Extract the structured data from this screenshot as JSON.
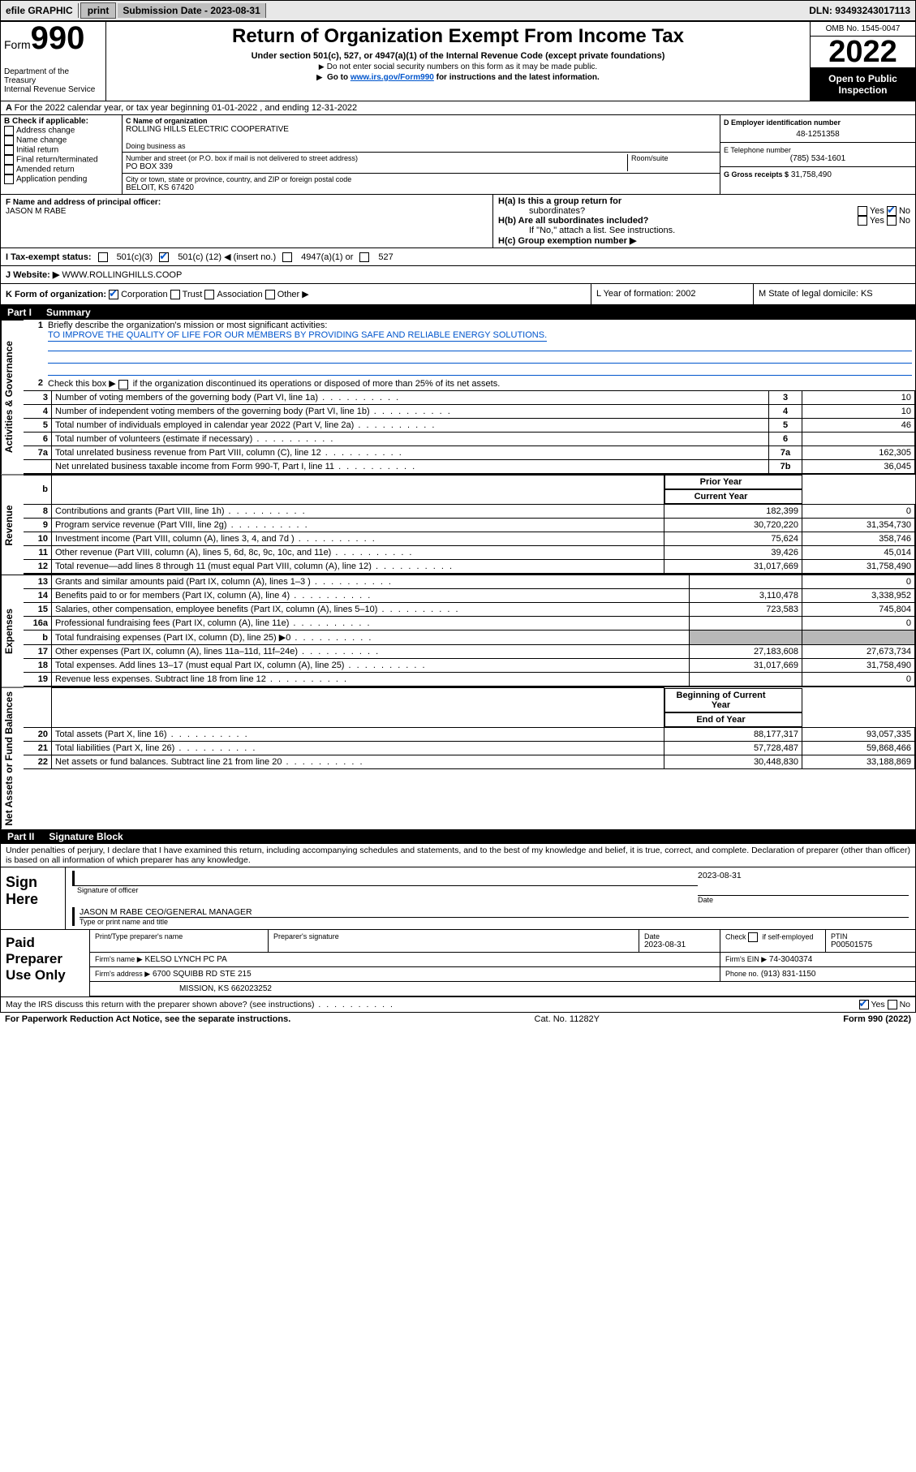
{
  "topbar": {
    "efile": "efile GRAPHIC",
    "print": "print",
    "submission_label": "Submission Date - 2023-08-31",
    "dln": "DLN: 93493243017113"
  },
  "header": {
    "form_word": "Form",
    "form_no": "990",
    "dept": "Department of the Treasury",
    "irs": "Internal Revenue Service",
    "title": "Return of Organization Exempt From Income Tax",
    "sub1": "Under section 501(c), 527, or 4947(a)(1) of the Internal Revenue Code (except private foundations)",
    "sub2": "Do not enter social security numbers on this form as it may be made public.",
    "sub3a": "Go to ",
    "sub3_link": "www.irs.gov/Form990",
    "sub3b": " for instructions and the latest information.",
    "omb": "OMB No. 1545-0047",
    "year": "2022",
    "open1": "Open to Public",
    "open2": "Inspection"
  },
  "rowA": "For the 2022 calendar year, or tax year beginning 01-01-2022   , and ending 12-31-2022",
  "boxB": {
    "label": "B Check if applicable:",
    "items": [
      "Address change",
      "Name change",
      "Initial return",
      "Final return/terminated",
      "Amended return",
      "Application pending"
    ]
  },
  "boxC": {
    "name_label": "C Name of organization",
    "name": "ROLLING HILLS ELECTRIC COOPERATIVE",
    "dba_label": "Doing business as",
    "street_label": "Number and street (or P.O. box if mail is not delivered to street address)",
    "room_label": "Room/suite",
    "street": "PO BOX 339",
    "city_label": "City or town, state or province, country, and ZIP or foreign postal code",
    "city": "BELOIT, KS  67420"
  },
  "boxD": {
    "ein_label": "D Employer identification number",
    "ein": "48-1251358",
    "phone_label": "E Telephone number",
    "phone": "(785) 534-1601",
    "gross_label": "G Gross receipts $",
    "gross": "31,758,490"
  },
  "boxF": {
    "label": "F  Name and address of principal officer:",
    "value": "JASON M RABE"
  },
  "boxH": {
    "ha": "H(a)  Is this a group return for",
    "ha2": "subordinates?",
    "hb": "H(b)  Are all subordinates included?",
    "hb_note": "If \"No,\" attach a list. See instructions.",
    "hc": "H(c)  Group exemption number ▶",
    "yes": "Yes",
    "no": "No"
  },
  "rowI": {
    "label": "I    Tax-exempt status:",
    "o1": "501(c)(3)",
    "o2a": "501(c) (",
    "o2b": "12",
    "o2c": ") ◀ (insert no.)",
    "o3": "4947(a)(1) or",
    "o4": "527"
  },
  "rowJ": {
    "label": "J    Website: ▶",
    "value": "WWW.ROLLINGHILLS.COOP"
  },
  "rowK": {
    "label": "K Form of organization:",
    "corp": "Corporation",
    "trust": "Trust",
    "assoc": "Association",
    "other": "Other ▶",
    "L": "L Year of formation: 2002",
    "M": "M State of legal domicile: KS"
  },
  "part1": {
    "hdr_pn": "Part I",
    "hdr_title": "Summary"
  },
  "gov": {
    "l1_label": "Briefly describe the organization's mission or most significant activities:",
    "l1_text": "TO IMPROVE THE QUALITY OF LIFE FOR OUR MEMBERS BY PROVIDING SAFE AND RELIABLE ENERGY SOLUTIONS.",
    "l2": "Check this box ▶     if the organization discontinued its operations or disposed of more than 25% of its net assets.",
    "rows": [
      {
        "n": "3",
        "d": "Number of voting members of the governing body (Part VI, line 1a)",
        "k": "3",
        "v": "10"
      },
      {
        "n": "4",
        "d": "Number of independent voting members of the governing body (Part VI, line 1b)",
        "k": "4",
        "v": "10"
      },
      {
        "n": "5",
        "d": "Total number of individuals employed in calendar year 2022 (Part V, line 2a)",
        "k": "5",
        "v": "46"
      },
      {
        "n": "6",
        "d": "Total number of volunteers (estimate if necessary)",
        "k": "6",
        "v": ""
      },
      {
        "n": "7a",
        "d": "Total unrelated business revenue from Part VIII, column (C), line 12",
        "k": "7a",
        "v": "162,305"
      },
      {
        "n": "",
        "d": "Net unrelated business taxable income from Form 990-T, Part I, line 11",
        "k": "7b",
        "v": "36,045"
      }
    ]
  },
  "col_hdr": {
    "b": "b",
    "prior": "Prior Year",
    "current": "Current Year"
  },
  "rev": [
    {
      "n": "8",
      "d": "Contributions and grants (Part VIII, line 1h)",
      "p": "182,399",
      "c": "0"
    },
    {
      "n": "9",
      "d": "Program service revenue (Part VIII, line 2g)",
      "p": "30,720,220",
      "c": "31,354,730"
    },
    {
      "n": "10",
      "d": "Investment income (Part VIII, column (A), lines 3, 4, and 7d )",
      "p": "75,624",
      "c": "358,746"
    },
    {
      "n": "11",
      "d": "Other revenue (Part VIII, column (A), lines 5, 6d, 8c, 9c, 10c, and 11e)",
      "p": "39,426",
      "c": "45,014"
    },
    {
      "n": "12",
      "d": "Total revenue—add lines 8 through 11 (must equal Part VIII, column (A), line 12)",
      "p": "31,017,669",
      "c": "31,758,490"
    }
  ],
  "exp": [
    {
      "n": "13",
      "d": "Grants and similar amounts paid (Part IX, column (A), lines 1–3 )",
      "p": "",
      "c": "0"
    },
    {
      "n": "14",
      "d": "Benefits paid to or for members (Part IX, column (A), line 4)",
      "p": "3,110,478",
      "c": "3,338,952"
    },
    {
      "n": "15",
      "d": "Salaries, other compensation, employee benefits (Part IX, column (A), lines 5–10)",
      "p": "723,583",
      "c": "745,804"
    },
    {
      "n": "16a",
      "d": "Professional fundraising fees (Part IX, column (A), line 11e)",
      "p": "",
      "c": "0"
    },
    {
      "n": "b",
      "d": "Total fundraising expenses (Part IX, column (D), line 25) ▶0",
      "p": "GRAY",
      "c": "GRAY"
    },
    {
      "n": "17",
      "d": "Other expenses (Part IX, column (A), lines 11a–11d, 11f–24e)",
      "p": "27,183,608",
      "c": "27,673,734"
    },
    {
      "n": "18",
      "d": "Total expenses. Add lines 13–17 (must equal Part IX, column (A), line 25)",
      "p": "31,017,669",
      "c": "31,758,490"
    },
    {
      "n": "19",
      "d": "Revenue less expenses. Subtract line 18 from line 12",
      "p": "",
      "c": "0"
    }
  ],
  "bal_hdr": {
    "b": "Beginning of Current Year",
    "e": "End of Year"
  },
  "bal": [
    {
      "n": "20",
      "d": "Total assets (Part X, line 16)",
      "p": "88,177,317",
      "c": "93,057,335"
    },
    {
      "n": "21",
      "d": "Total liabilities (Part X, line 26)",
      "p": "57,728,487",
      "c": "59,868,466"
    },
    {
      "n": "22",
      "d": "Net assets or fund balances. Subtract line 21 from line 20",
      "p": "30,448,830",
      "c": "33,188,869"
    }
  ],
  "part2": {
    "pn": "Part II",
    "title": "Signature Block"
  },
  "sig": {
    "decl": "Under penalties of perjury, I declare that I have examined this return, including accompanying schedules and statements, and to the best of my knowledge and belief, it is true, correct, and complete. Declaration of preparer (other than officer) is based on all information of which preparer has any knowledge.",
    "sign_here": "Sign Here",
    "sig_officer": "Signature of officer",
    "date": "Date",
    "sig_date": "2023-08-31",
    "name_title": "JASON M RABE  CEO/GENERAL MANAGER",
    "type_name": "Type or print name and title"
  },
  "paid": {
    "label": "Paid Preparer Use Only",
    "h_print": "Print/Type preparer's name",
    "h_sig": "Preparer's signature",
    "h_date": "Date",
    "date": "2023-08-31",
    "h_check": "Check       if self-employed",
    "h_ptin": "PTIN",
    "ptin": "P00501575",
    "firm_name_l": "Firm's name     ▶",
    "firm_name": "KELSO LYNCH PC PA",
    "firm_ein_l": "Firm's EIN ▶",
    "firm_ein": "74-3040374",
    "firm_addr_l": "Firm's address ▶",
    "firm_addr1": "6700 SQUIBB RD STE 215",
    "firm_addr2": "MISSION, KS  662023252",
    "phone_l": "Phone no.",
    "phone": "(913) 831-1150",
    "may_discuss": "May the IRS discuss this return with the preparer shown above? (see instructions)",
    "yes": "Yes",
    "no": "No"
  },
  "footer": {
    "left": "For Paperwork Reduction Act Notice, see the separate instructions.",
    "mid": "Cat. No. 11282Y",
    "right": "Form 990 (2022)"
  },
  "vlabels": {
    "gov": "Activities & Governance",
    "rev": "Revenue",
    "exp": "Expenses",
    "bal": "Net Assets or Fund Balances"
  }
}
